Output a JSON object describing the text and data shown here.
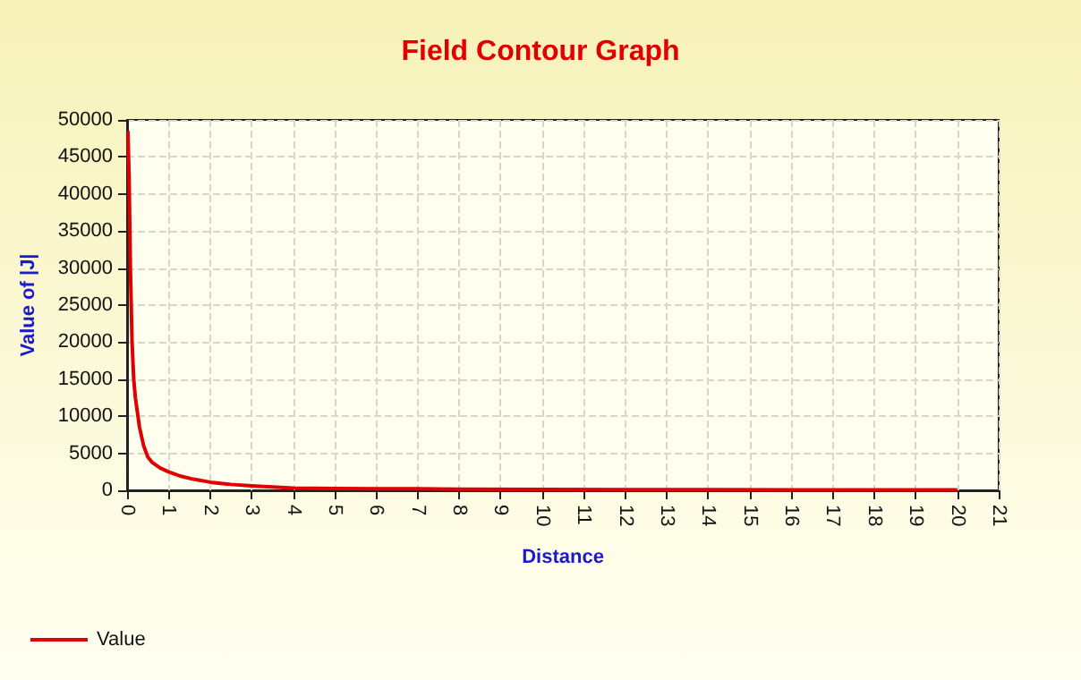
{
  "chart_data": {
    "type": "line",
    "title": "Field Contour Graph",
    "xlabel": "Distance",
    "ylabel": "Value of |J|",
    "xlim": [
      0,
      21
    ],
    "xticks": [
      0,
      1,
      2,
      3,
      4,
      5,
      6,
      7,
      8,
      9,
      10,
      11,
      12,
      13,
      14,
      15,
      16,
      17,
      18,
      19,
      20,
      21
    ],
    "ylim": [
      0,
      50000
    ],
    "yticks": [
      0,
      5000,
      10000,
      15000,
      20000,
      25000,
      30000,
      35000,
      40000,
      45000,
      50000
    ],
    "grid": true,
    "legend": "bottom left",
    "marker": "none",
    "line_style": "solid",
    "series": [
      {
        "name": "Value",
        "color": "#e00000",
        "x": [
          0.02,
          0.05,
          0.08,
          0.12,
          0.16,
          0.2,
          0.3,
          0.4,
          0.5,
          0.6,
          0.8,
          1,
          1.3,
          1.6,
          2,
          2.5,
          3,
          3.5,
          4,
          5,
          6,
          7,
          8,
          10,
          12,
          14,
          16,
          18,
          20
        ],
        "values": [
          48500,
          42000,
          30000,
          20000,
          15000,
          12500,
          8500,
          6000,
          4500,
          3800,
          3000,
          2500,
          1900,
          1500,
          1100,
          800,
          600,
          450,
          300,
          250,
          220,
          200,
          150,
          120,
          100,
          80,
          70,
          60,
          50
        ]
      }
    ]
  }
}
